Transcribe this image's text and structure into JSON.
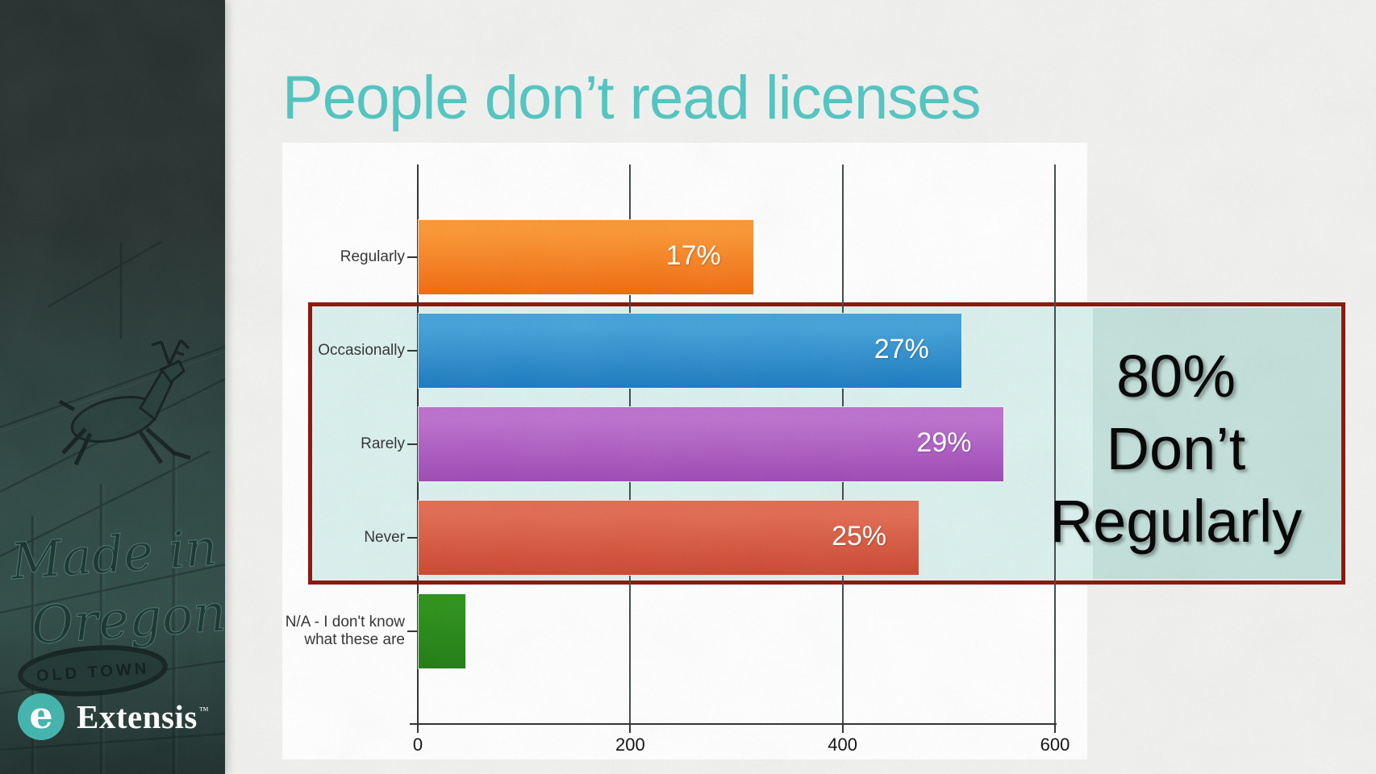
{
  "slide": {
    "title": "People don’t read licenses"
  },
  "sidebar": {
    "brand": "Extensis",
    "trademark": "™",
    "logo_letter": "e",
    "sign": {
      "line1": "Made in",
      "line2": "Oregon",
      "badge": "OLD TOWN"
    },
    "logo_color": "#3fb4ac"
  },
  "highlight": {
    "lines": [
      "80%",
      "Don’t",
      "Regularly"
    ],
    "highlighted_categories": [
      "Occasionally",
      "Rarely",
      "Never"
    ],
    "fill_color": "#d8f0ed",
    "border_color": "#8b1006"
  },
  "colors": {
    "title_accent": "#4fc5c1",
    "paper": "#f1f1ef",
    "axis": "#2e2e2e"
  },
  "chart_data": {
    "type": "bar",
    "orientation": "horizontal",
    "title": "",
    "xlabel": "",
    "ylabel": "",
    "xlim": [
      0,
      600
    ],
    "xticks": [
      0,
      200,
      400,
      600
    ],
    "grid": true,
    "legend": false,
    "categories": [
      "Regularly",
      "Occasionally",
      "Rarely",
      "Never",
      "N/A - I don't know\nwhat these are"
    ],
    "values": [
      315,
      511,
      551,
      471,
      44
    ],
    "percent_labels": [
      "17%",
      "27%",
      "29%",
      "25%",
      ""
    ],
    "bar_gradients": [
      [
        "#fb9632",
        "#f1680c"
      ],
      [
        "#42a1d9",
        "#1979bf"
      ],
      [
        "#bb6fce",
        "#9c47b3"
      ],
      [
        "#e16a4f",
        "#cc442d"
      ],
      [
        "#2b9119",
        "#1e7b10"
      ]
    ]
  }
}
